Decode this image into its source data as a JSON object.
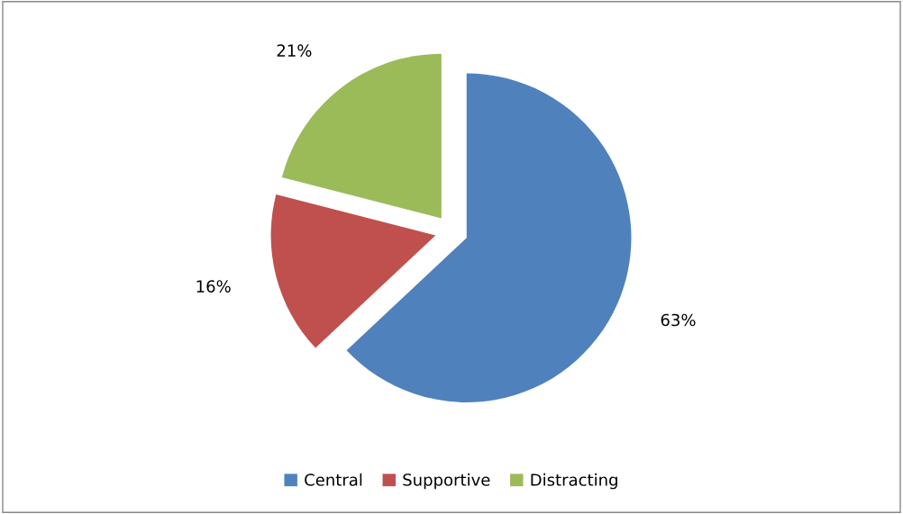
{
  "chart_data": {
    "type": "pie",
    "categories": [
      "Central",
      "Supportive",
      "Distracting"
    ],
    "values": [
      63,
      16,
      21
    ],
    "value_labels": [
      "63%",
      "16%",
      "21%"
    ],
    "colors": [
      "#4f81bd",
      "#c0504d",
      "#9bbb59"
    ],
    "legend": "bottom"
  }
}
